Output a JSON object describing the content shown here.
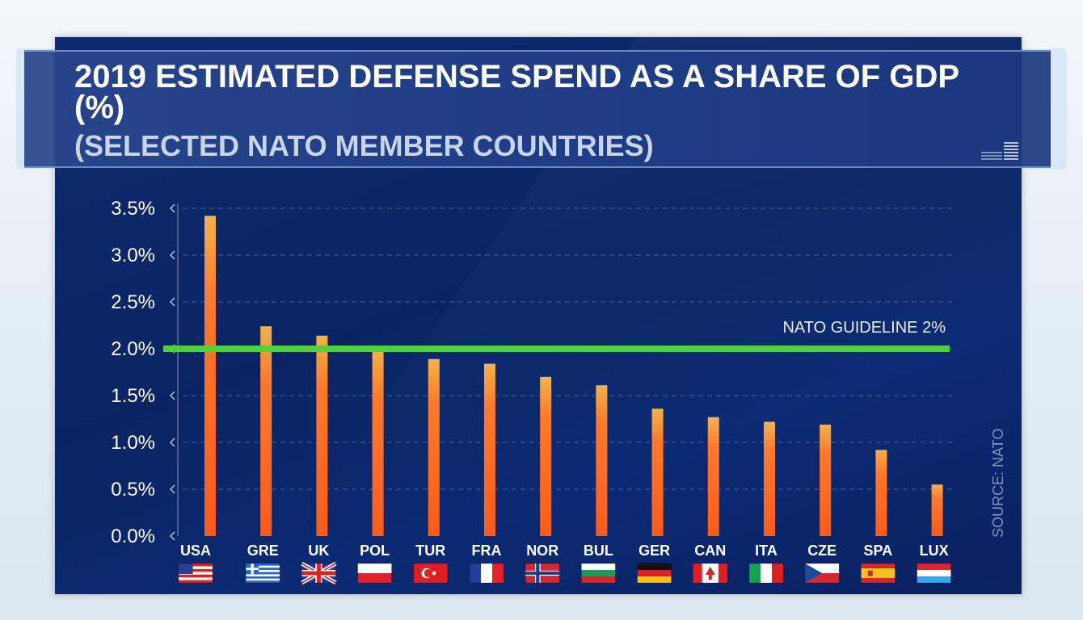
{
  "header": {
    "title": "2019 ESTIMATED DEFENSE SPEND AS A SHARE OF GDP (%)",
    "subtitle": "(SELECTED NATO MEMBER COUNTRIES)"
  },
  "source_text": "SOURCE: NATO",
  "colors": {
    "panel": "#0a2463",
    "bar_top": "#f3b24a",
    "bar_bottom": "#ff5a1a",
    "guideline": "#4ed43a",
    "text": "#ffffff"
  },
  "chart_data": {
    "type": "bar",
    "title": "2019 ESTIMATED DEFENSE SPEND AS A SHARE OF GDP (%)",
    "subtitle": "(SELECTED NATO MEMBER COUNTRIES)",
    "categories": [
      "USA",
      "GRE",
      "UK",
      "POL",
      "TUR",
      "FRA",
      "NOR",
      "BUL",
      "GER",
      "CAN",
      "ITA",
      "CZE",
      "SPA",
      "LUX"
    ],
    "flags": [
      "flag-usa",
      "flag-greece",
      "flag-uk",
      "flag-poland",
      "flag-turkey",
      "flag-france",
      "flag-norway",
      "flag-bulgaria",
      "flag-germany",
      "flag-canada",
      "flag-italy",
      "flag-czechia",
      "flag-spain",
      "flag-luxembourg"
    ],
    "values": [
      3.42,
      2.24,
      2.14,
      2.0,
      1.89,
      1.84,
      1.7,
      1.61,
      1.36,
      1.27,
      1.22,
      1.19,
      0.92,
      0.55
    ],
    "y_ticks": [
      "0.0%",
      "0.5%",
      "1.0%",
      "1.5%",
      "2.0%",
      "2.5%",
      "3.0%",
      "3.5%"
    ],
    "ylim": [
      0,
      3.5
    ],
    "grid": true,
    "reference_line": {
      "value": 2.0,
      "label": "NATO GUIDELINE 2%"
    }
  }
}
